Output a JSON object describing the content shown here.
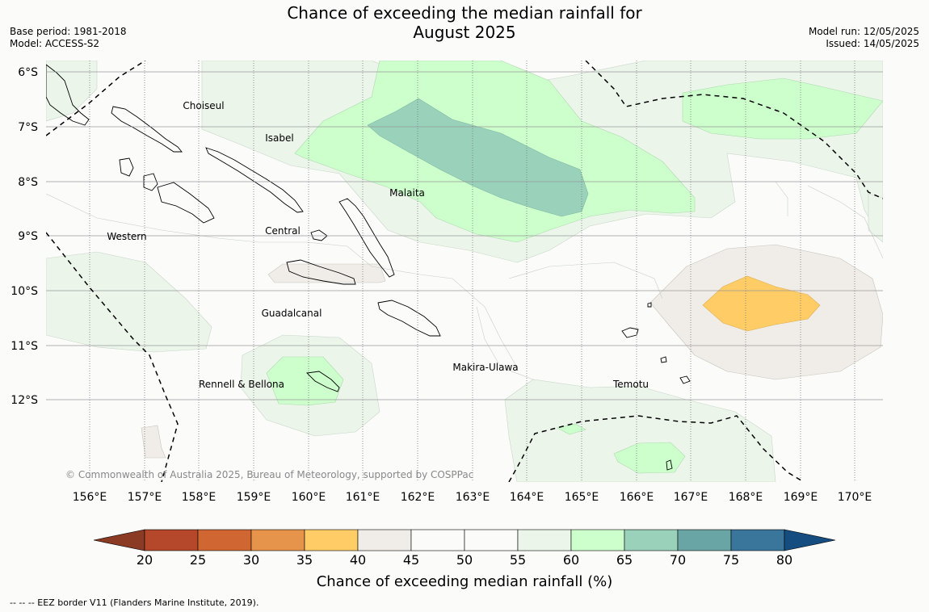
{
  "title_line1": "Chance of exceeding the median rainfall for",
  "title_line2": "August 2025",
  "base_period": "Base period: 1981-2018",
  "model": "Model: ACCESS-S2",
  "model_run": "Model run: 12/05/2025",
  "issued": "Issued: 14/05/2025",
  "copyright": "© Commonwealth of Australia 2025, Bureau of Meteorology, supported by COSPPac",
  "footnote": "--  --  -- EEZ border V11 (Flanders Marine Institute, 2019).",
  "lat_labels": [
    "6°S",
    "7°S",
    "8°S",
    "9°S",
    "10°S",
    "11°S",
    "12°S"
  ],
  "lon_labels": [
    "156°E",
    "157°E",
    "158°E",
    "159°E",
    "160°E",
    "161°E",
    "162°E",
    "163°E",
    "164°E",
    "165°E",
    "166°E",
    "167°E",
    "168°E",
    "169°E",
    "170°E"
  ],
  "place_names": [
    "Choiseul",
    "Isabel",
    "Malaita",
    "Western",
    "Central",
    "Guadalcanal",
    "Makira-Ulawa",
    "Rennell & Bellona",
    "Temotu"
  ],
  "colorbar": {
    "title": "Chance of exceeding median rainfall (%)",
    "ticks": [
      "20",
      "25",
      "30",
      "35",
      "40",
      "45",
      "50",
      "55",
      "60",
      "65",
      "70",
      "75",
      "80"
    ],
    "colors": [
      "#8b3a24",
      "#b5482b",
      "#d06632",
      "#e6944b",
      "#ffcc66",
      "#f0ede8",
      "#fbfcfa",
      "#fbfcfa",
      "#ebf5ea",
      "#ccffcc",
      "#99d1bb",
      "#6aa5a5",
      "#3a769c",
      "#154d80"
    ]
  }
}
